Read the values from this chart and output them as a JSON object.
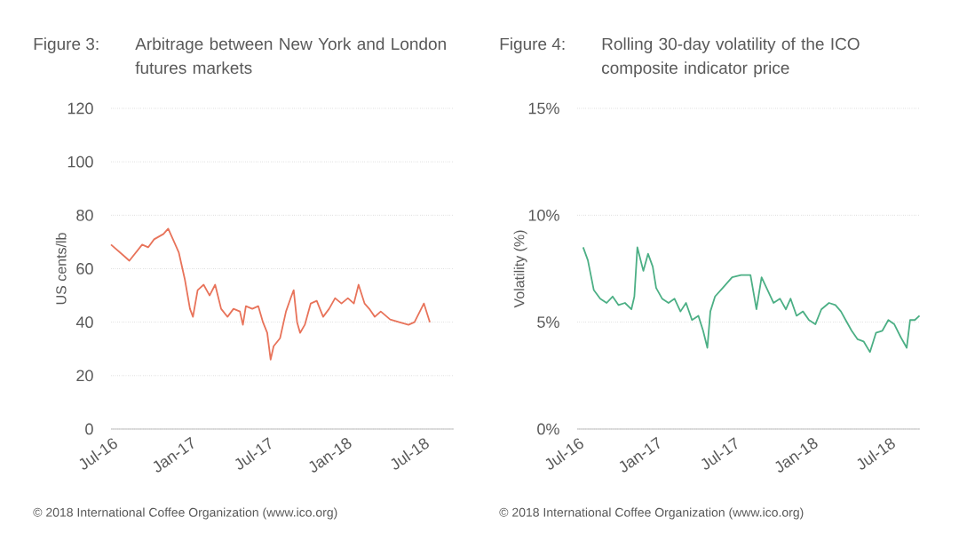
{
  "chart_data": [
    {
      "type": "line",
      "title": "Figure 3:",
      "subtitle": "Arbitrage between New York and London futures markets",
      "ylabel": "US cents/lb",
      "grid": "y",
      "xlim": [
        "2016-07-01",
        "2018-09-12"
      ],
      "ylim": [
        0,
        120
      ],
      "yticks": [
        0,
        20,
        40,
        60,
        80,
        100,
        120
      ],
      "xticks": [
        {
          "value": "2016-07-01",
          "label": "Jul-16"
        },
        {
          "value": "2017-01-01",
          "label": "Jan-17"
        },
        {
          "value": "2017-07-01",
          "label": "Jul-17"
        },
        {
          "value": "2018-01-01",
          "label": "Jan-18"
        },
        {
          "value": "2018-07-01",
          "label": "Jul-18"
        }
      ],
      "annotations": [
        "© 2018 International Coffee Organization (www.ico.org)"
      ],
      "series": [
        {
          "color": "#e8735a",
          "x": [
            "2016-07-01",
            "2016-07-30",
            "2016-08-13",
            "2016-08-28",
            "2016-09-12",
            "2016-09-26",
            "2016-10-10",
            "2016-11-01",
            "2016-11-12",
            "2016-11-26",
            "2016-12-07",
            "2016-12-21",
            "2017-01-02",
            "2017-01-09",
            "2017-01-20",
            "2017-02-03",
            "2017-02-17",
            "2017-03-02",
            "2017-03-16",
            "2017-03-31",
            "2017-04-14",
            "2017-04-29",
            "2017-05-06",
            "2017-05-13",
            "2017-05-28",
            "2017-06-11",
            "2017-06-22",
            "2017-07-02",
            "2017-07-10",
            "2017-07-17",
            "2017-08-01",
            "2017-08-15",
            "2017-08-26",
            "2017-09-02",
            "2017-09-10",
            "2017-09-17",
            "2017-09-28",
            "2017-10-12",
            "2017-10-26",
            "2017-11-10",
            "2017-11-24",
            "2017-12-08",
            "2017-12-23",
            "2018-01-07",
            "2018-01-21",
            "2018-02-01",
            "2018-02-15",
            "2018-02-26",
            "2018-03-11",
            "2018-03-25",
            "2018-04-16",
            "2018-05-07",
            "2018-05-29",
            "2018-06-12",
            "2018-07-04",
            "2018-07-18"
          ],
          "values": [
            69,
            65,
            63,
            66,
            69,
            68,
            71,
            73,
            75,
            70,
            66,
            56,
            45,
            42,
            52,
            54,
            50,
            54,
            45,
            42,
            45,
            44,
            39,
            46,
            45,
            46,
            40,
            36,
            26,
            31,
            34,
            44,
            49,
            52,
            40,
            36,
            39,
            47,
            48,
            42,
            45,
            49,
            47,
            49,
            47,
            54,
            47,
            45,
            42,
            44,
            41,
            40,
            39,
            40,
            47,
            40
          ]
        }
      ]
    },
    {
      "type": "line",
      "title": "Figure 4:",
      "subtitle": "Rolling 30-day volatility of the ICO composite indicator price",
      "ylabel": "Volatility (%)",
      "grid": "y",
      "xlim": [
        "2016-07-01",
        "2018-09-12"
      ],
      "ylim": [
        0,
        15
      ],
      "yticks": [
        {
          "value": 0,
          "label": "0%"
        },
        {
          "value": 5,
          "label": "5%"
        },
        {
          "value": 10,
          "label": "10%"
        },
        {
          "value": 15,
          "label": "15%"
        }
      ],
      "xticks": [
        {
          "value": "2016-07-01",
          "label": "Jul-16"
        },
        {
          "value": "2017-01-01",
          "label": "Jan-17"
        },
        {
          "value": "2017-07-01",
          "label": "Jul-17"
        },
        {
          "value": "2018-01-01",
          "label": "Jan-18"
        },
        {
          "value": "2018-07-01",
          "label": "Jul-18"
        }
      ],
      "annotations": [
        "© 2018 International Coffee Organization (www.ico.org)"
      ],
      "series": [
        {
          "color": "#4caf85",
          "x": [
            "2016-07-15",
            "2016-07-26",
            "2016-08-09",
            "2016-08-24",
            "2016-09-08",
            "2016-09-22",
            "2016-10-06",
            "2016-10-21",
            "2016-11-05",
            "2016-11-12",
            "2016-11-19",
            "2016-12-03",
            "2016-12-14",
            "2016-12-25",
            "2017-01-02",
            "2017-01-16",
            "2017-01-31",
            "2017-02-14",
            "2017-02-28",
            "2017-03-13",
            "2017-03-27",
            "2017-04-11",
            "2017-04-22",
            "2017-05-02",
            "2017-05-09",
            "2017-05-20",
            "2017-06-07",
            "2017-06-29",
            "2017-07-20",
            "2017-08-11",
            "2017-08-25",
            "2017-09-06",
            "2017-09-20",
            "2017-10-04",
            "2017-10-19",
            "2017-11-02",
            "2017-11-13",
            "2017-11-27",
            "2017-12-12",
            "2017-12-26",
            "2018-01-10",
            "2018-01-24",
            "2018-02-11",
            "2018-02-26",
            "2018-03-11",
            "2018-03-22",
            "2018-04-05",
            "2018-04-19",
            "2018-05-03",
            "2018-05-18",
            "2018-06-01",
            "2018-06-16",
            "2018-06-30",
            "2018-07-14",
            "2018-07-29",
            "2018-08-12",
            "2018-08-20",
            "2018-08-31",
            "2018-09-11"
          ],
          "values": [
            8.5,
            7.9,
            6.5,
            6.1,
            5.9,
            6.2,
            5.8,
            5.9,
            5.6,
            6.2,
            8.5,
            7.4,
            8.2,
            7.6,
            6.6,
            6.1,
            5.9,
            6.1,
            5.5,
            5.9,
            5.1,
            5.3,
            4.6,
            3.8,
            5.5,
            6.2,
            6.6,
            7.1,
            7.2,
            7.2,
            5.6,
            7.1,
            6.5,
            5.9,
            6.1,
            5.6,
            6.1,
            5.3,
            5.5,
            5.1,
            4.9,
            5.6,
            5.9,
            5.8,
            5.5,
            5.1,
            4.6,
            4.2,
            4.1,
            3.6,
            4.5,
            4.6,
            5.1,
            4.9,
            4.3,
            3.8,
            5.1,
            5.1,
            5.3
          ]
        }
      ]
    }
  ]
}
